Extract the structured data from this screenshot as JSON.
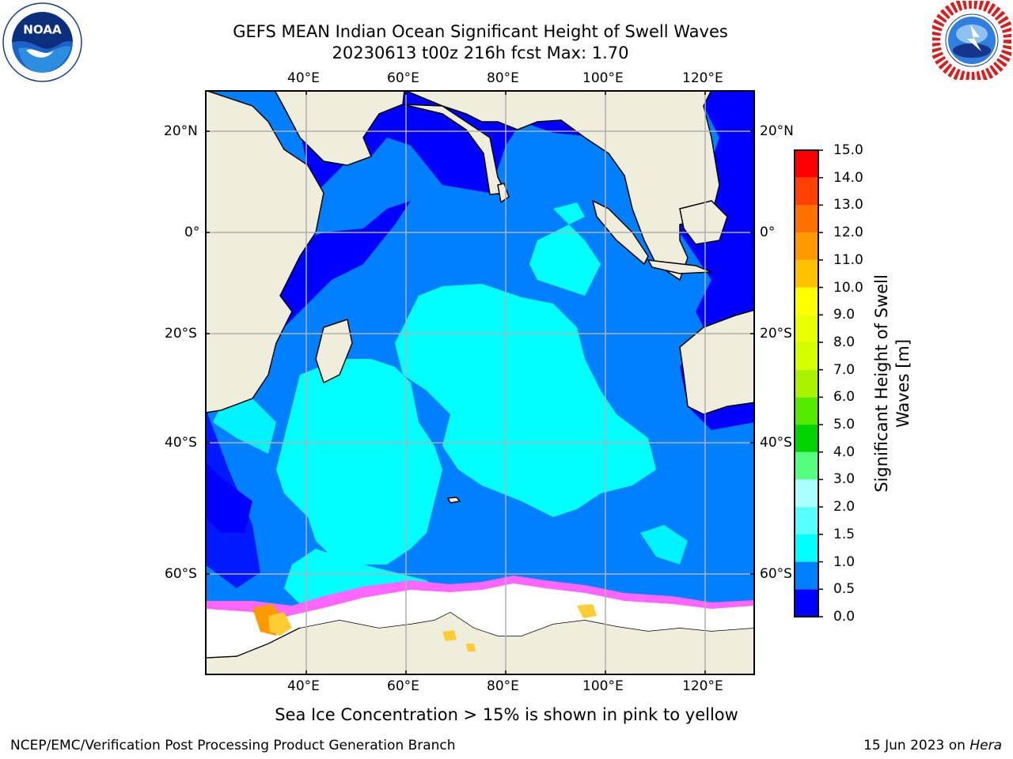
{
  "header": {
    "title": "GEFS MEAN Indian Ocean Significant Height of Swell Waves",
    "subtitle": "20230613 t00z 216h fcst   Max: 1.70"
  },
  "logos": {
    "left": {
      "icon": "noaa-logo-icon",
      "text": "NOAA"
    },
    "right": {
      "icon": "national-weather-service-logo-icon",
      "text": "NATIONAL WEATHER SERVICE"
    }
  },
  "map": {
    "lon_labels": [
      "40°E",
      "60°E",
      "80°E",
      "100°E",
      "120°E"
    ],
    "lat_labels": [
      "20°N",
      "0°",
      "20°S",
      "40°S",
      "60°S"
    ],
    "lon_range": [
      20,
      130
    ],
    "lat_range": [
      -78,
      27
    ],
    "grid": true,
    "colors": {
      "land": "#efeedd",
      "sea_ice": "#ffffff",
      "ice_edge_pink": "#ff66ff",
      "ice_edge_yellow": "#ffcc33"
    }
  },
  "colorbar": {
    "title_line1": "Significant Height of Swell",
    "title_line2": "Waves [m]",
    "tick_labels": [
      "0.0",
      "0.5",
      "1.0",
      "1.5",
      "2.0",
      "3.0",
      "4.0",
      "5.0",
      "6.0",
      "7.0",
      "8.0",
      "9.0",
      "10.0",
      "11.0",
      "12.0",
      "13.0",
      "14.0",
      "15.0"
    ],
    "bins": [
      {
        "from": 0.0,
        "to": 0.5,
        "color": "#0000ff"
      },
      {
        "from": 0.5,
        "to": 1.0,
        "color": "#007fff"
      },
      {
        "from": 1.0,
        "to": 1.5,
        "color": "#00ffff"
      },
      {
        "from": 1.5,
        "to": 2.0,
        "color": "#55ffff"
      },
      {
        "from": 2.0,
        "to": 3.0,
        "color": "#aaffff"
      },
      {
        "from": 3.0,
        "to": 4.0,
        "color": "#55ff80"
      },
      {
        "from": 4.0,
        "to": 5.0,
        "color": "#00d400"
      },
      {
        "from": 5.0,
        "to": 6.0,
        "color": "#55e800"
      },
      {
        "from": 6.0,
        "to": 7.0,
        "color": "#aaf200"
      },
      {
        "from": 7.0,
        "to": 8.0,
        "color": "#d4ff00"
      },
      {
        "from": 8.0,
        "to": 9.0,
        "color": "#eaff00"
      },
      {
        "from": 9.0,
        "to": 10.0,
        "color": "#ffff00"
      },
      {
        "from": 10.0,
        "to": 11.0,
        "color": "#ffc000"
      },
      {
        "from": 11.0,
        "to": 12.0,
        "color": "#ff9900"
      },
      {
        "from": 12.0,
        "to": 13.0,
        "color": "#ff7000"
      },
      {
        "from": 13.0,
        "to": 14.0,
        "color": "#ff4000"
      },
      {
        "from": 14.0,
        "to": 15.0,
        "color": "#ff0000"
      }
    ]
  },
  "footnote": "Sea Ice Concentration > 15% is shown in pink to yellow",
  "footer": {
    "left": "NCEP/EMC/Verification Post Processing Product Generation Branch",
    "right_date": "15 Jun 2023 on",
    "right_host": "Hera"
  }
}
